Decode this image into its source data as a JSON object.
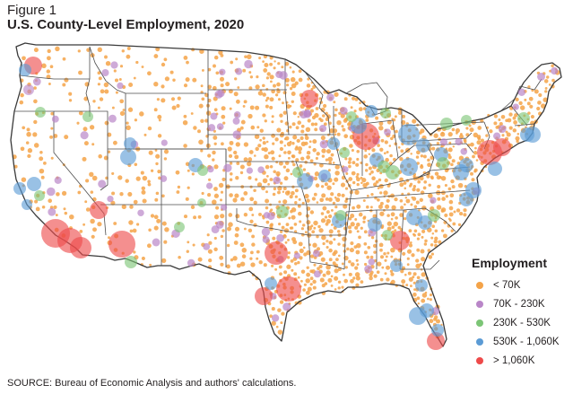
{
  "figure": {
    "label": "Figure 1",
    "title": "U.S. County-Level Employment, 2020",
    "source": "SOURCE: Bureau of Economic Analysis and authors' calculations."
  },
  "legend": {
    "title": "Employment",
    "items": [
      {
        "label": "< 70K",
        "color": "#f4a348"
      },
      {
        "label": "70K - 230K",
        "color": "#b986c8"
      },
      {
        "label": "230K - 530K",
        "color": "#7cc576"
      },
      {
        "label": "530K - 1,060K",
        "color": "#5b9bd5"
      },
      {
        "label": "> 1,060K",
        "color": "#ee4a4a"
      }
    ]
  },
  "map": {
    "region": "Contiguous United States",
    "boundaries": "state outlines",
    "base_color": "#ffffff",
    "border_color": "#4a4a4a"
  }
}
